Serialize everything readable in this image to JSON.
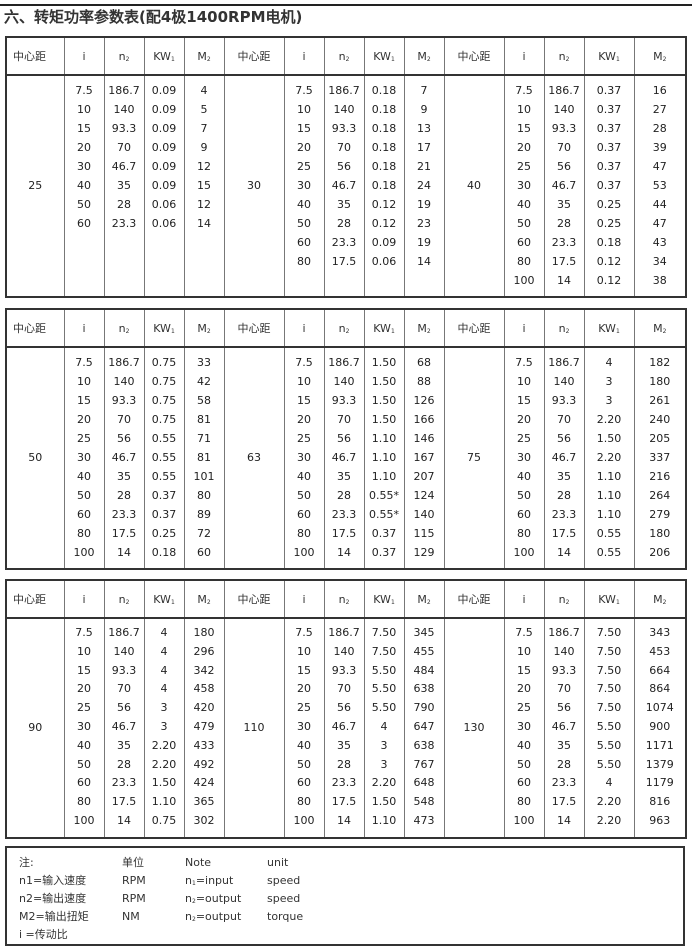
{
  "title": "六、转矩功率参数表(配4极1400RPM电机)",
  "headers": [
    {
      "base": "中心距",
      "sub": ""
    },
    {
      "base": "i",
      "sub": ""
    },
    {
      "base": "n",
      "sub": "2"
    },
    {
      "base": "KW",
      "sub": "1"
    },
    {
      "base": "M",
      "sub": "2"
    }
  ],
  "tables": [
    {
      "groups": [
        {
          "center": "25",
          "rows": [
            [
              "7.5",
              "186.7",
              "0.09",
              "4"
            ],
            [
              "10",
              "140",
              "0.09",
              "5"
            ],
            [
              "15",
              "93.3",
              "0.09",
              "7"
            ],
            [
              "20",
              "70",
              "0.09",
              "9"
            ],
            [
              "30",
              "46.7",
              "0.09",
              "12"
            ],
            [
              "40",
              "35",
              "0.09",
              "15"
            ],
            [
              "50",
              "28",
              "0.06",
              "12"
            ],
            [
              "60",
              "23.3",
              "0.06",
              "14"
            ]
          ]
        },
        {
          "center": "30",
          "rows": [
            [
              "7.5",
              "186.7",
              "0.18",
              "7"
            ],
            [
              "10",
              "140",
              "0.18",
              "9"
            ],
            [
              "15",
              "93.3",
              "0.18",
              "13"
            ],
            [
              "20",
              "70",
              "0.18",
              "17"
            ],
            [
              "25",
              "56",
              "0.18",
              "21"
            ],
            [
              "30",
              "46.7",
              "0.18",
              "24"
            ],
            [
              "40",
              "35",
              "0.12",
              "19"
            ],
            [
              "50",
              "28",
              "0.12",
              "23"
            ],
            [
              "60",
              "23.3",
              "0.09",
              "19"
            ],
            [
              "80",
              "17.5",
              "0.06",
              "14"
            ]
          ]
        },
        {
          "center": "40",
          "rows": [
            [
              "7.5",
              "186.7",
              "0.37",
              "16"
            ],
            [
              "10",
              "140",
              "0.37",
              "27"
            ],
            [
              "15",
              "93.3",
              "0.37",
              "28"
            ],
            [
              "20",
              "70",
              "0.37",
              "39"
            ],
            [
              "25",
              "56",
              "0.37",
              "47"
            ],
            [
              "30",
              "46.7",
              "0.37",
              "53"
            ],
            [
              "40",
              "35",
              "0.25",
              "44"
            ],
            [
              "50",
              "28",
              "0.25",
              "47"
            ],
            [
              "60",
              "23.3",
              "0.18",
              "43"
            ],
            [
              "80",
              "17.5",
              "0.12",
              "34"
            ],
            [
              "100",
              "14",
              "0.12",
              "38"
            ]
          ]
        }
      ]
    },
    {
      "groups": [
        {
          "center": "50",
          "rows": [
            [
              "7.5",
              "186.7",
              "0.75",
              "33"
            ],
            [
              "10",
              "140",
              "0.75",
              "42"
            ],
            [
              "15",
              "93.3",
              "0.75",
              "58"
            ],
            [
              "20",
              "70",
              "0.75",
              "81"
            ],
            [
              "25",
              "56",
              "0.55",
              "71"
            ],
            [
              "30",
              "46.7",
              "0.55",
              "81"
            ],
            [
              "40",
              "35",
              "0.55",
              "101"
            ],
            [
              "50",
              "28",
              "0.37",
              "80"
            ],
            [
              "60",
              "23.3",
              "0.37",
              "89"
            ],
            [
              "80",
              "17.5",
              "0.25",
              "72"
            ],
            [
              "100",
              "14",
              "0.18",
              "60"
            ]
          ]
        },
        {
          "center": "63",
          "rows": [
            [
              "7.5",
              "186.7",
              "1.50",
              "68"
            ],
            [
              "10",
              "140",
              "1.50",
              "88"
            ],
            [
              "15",
              "93.3",
              "1.50",
              "126"
            ],
            [
              "20",
              "70",
              "1.50",
              "166"
            ],
            [
              "25",
              "56",
              "1.10",
              "146"
            ],
            [
              "30",
              "46.7",
              "1.10",
              "167"
            ],
            [
              "40",
              "35",
              "1.10",
              "207"
            ],
            [
              "50",
              "28",
              "0.55*",
              "124"
            ],
            [
              "60",
              "23.3",
              "0.55*",
              "140"
            ],
            [
              "80",
              "17.5",
              "0.37",
              "115"
            ],
            [
              "100",
              "14",
              "0.37",
              "129"
            ]
          ]
        },
        {
          "center": "75",
          "rows": [
            [
              "7.5",
              "186.7",
              "4",
              "182"
            ],
            [
              "10",
              "140",
              "3",
              "180"
            ],
            [
              "15",
              "93.3",
              "3",
              "261"
            ],
            [
              "20",
              "70",
              "2.20",
              "240"
            ],
            [
              "25",
              "56",
              "1.50",
              "205"
            ],
            [
              "30",
              "46.7",
              "2.20",
              "337"
            ],
            [
              "40",
              "35",
              "1.10",
              "216"
            ],
            [
              "50",
              "28",
              "1.10",
              "264"
            ],
            [
              "60",
              "23.3",
              "1.10",
              "279"
            ],
            [
              "80",
              "17.5",
              "0.55",
              "180"
            ],
            [
              "100",
              "14",
              "0.55",
              "206"
            ]
          ]
        }
      ]
    },
    {
      "groups": [
        {
          "center": "90",
          "rows": [
            [
              "7.5",
              "186.7",
              "4",
              "180"
            ],
            [
              "10",
              "140",
              "4",
              "296"
            ],
            [
              "15",
              "93.3",
              "4",
              "342"
            ],
            [
              "20",
              "70",
              "4",
              "458"
            ],
            [
              "25",
              "56",
              "3",
              "420"
            ],
            [
              "30",
              "46.7",
              "3",
              "479"
            ],
            [
              "40",
              "35",
              "2.20",
              "433"
            ],
            [
              "50",
              "28",
              "2.20",
              "492"
            ],
            [
              "60",
              "23.3",
              "1.50",
              "424"
            ],
            [
              "80",
              "17.5",
              "1.10",
              "365"
            ],
            [
              "100",
              "14",
              "0.75",
              "302"
            ]
          ]
        },
        {
          "center": "110",
          "rows": [
            [
              "7.5",
              "186.7",
              "7.50",
              "345"
            ],
            [
              "10",
              "140",
              "7.50",
              "455"
            ],
            [
              "15",
              "93.3",
              "5.50",
              "484"
            ],
            [
              "20",
              "70",
              "5.50",
              "638"
            ],
            [
              "25",
              "56",
              "5.50",
              "790"
            ],
            [
              "30",
              "46.7",
              "4",
              "647"
            ],
            [
              "40",
              "35",
              "3",
              "638"
            ],
            [
              "50",
              "28",
              "3",
              "767"
            ],
            [
              "60",
              "23.3",
              "2.20",
              "648"
            ],
            [
              "80",
              "17.5",
              "1.50",
              "548"
            ],
            [
              "100",
              "14",
              "1.10",
              "473"
            ]
          ]
        },
        {
          "center": "130",
          "rows": [
            [
              "7.5",
              "186.7",
              "7.50",
              "343"
            ],
            [
              "10",
              "140",
              "7.50",
              "453"
            ],
            [
              "15",
              "93.3",
              "7.50",
              "664"
            ],
            [
              "20",
              "70",
              "7.50",
              "864"
            ],
            [
              "25",
              "56",
              "7.50",
              "1074"
            ],
            [
              "30",
              "46.7",
              "5.50",
              "900"
            ],
            [
              "40",
              "35",
              "5.50",
              "1171"
            ],
            [
              "50",
              "28",
              "5.50",
              "1379"
            ],
            [
              "60",
              "23.3",
              "4",
              "1179"
            ],
            [
              "80",
              "17.5",
              "2.20",
              "816"
            ],
            [
              "100",
              "14",
              "2.20",
              "963"
            ]
          ]
        }
      ]
    }
  ],
  "notes": {
    "rows": [
      {
        "c1": "注:",
        "c2": "单位",
        "c3": "Note",
        "c3sub": "",
        "c3rest": "",
        "c4": "unit"
      },
      {
        "c1": "n1=输入速度",
        "c2": "RPM",
        "c3": "n",
        "c3sub": "1",
        "c3rest": "=input",
        "c4": "speed"
      },
      {
        "c1": "n2=输出速度",
        "c2": "RPM",
        "c3": "n",
        "c3sub": "2",
        "c3rest": "=output",
        "c4": "speed"
      },
      {
        "c1": "M2=输出扭矩",
        "c2": "NM",
        "c3": "n",
        "c3sub": "2",
        "c3rest": "=output",
        "c4": "torque"
      },
      {
        "c1": " i =传动比",
        "c2": "",
        "c3": "",
        "c3sub": "",
        "c3rest": "",
        "c4": ""
      }
    ]
  }
}
